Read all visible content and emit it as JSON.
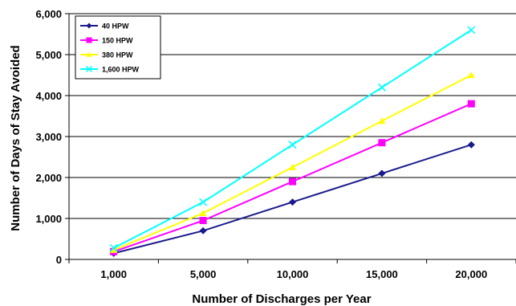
{
  "chart_data": {
    "type": "line",
    "title": "",
    "xlabel": "Number of Discharges per Year",
    "ylabel": "Number of Days of Stay Avoided",
    "categories": [
      "1,000",
      "5,000",
      "10,000",
      "15,000",
      "20,000"
    ],
    "x": [
      1000,
      5000,
      10000,
      15000,
      20000
    ],
    "ylim": [
      0,
      6000
    ],
    "yticks": [
      "0",
      "1,000",
      "2,000",
      "3,000",
      "4,000",
      "5,000",
      "6,000"
    ],
    "grid": "horizontal",
    "legend_position": "top-left",
    "series": [
      {
        "name": "40 HPW",
        "values": [
          150,
          700,
          1400,
          2100,
          2800
        ],
        "color": "#1a1a8c",
        "marker": "diamond"
      },
      {
        "name": "150 HPW",
        "values": [
          190,
          950,
          1900,
          2850,
          3800
        ],
        "color": "#ff00ff",
        "marker": "square"
      },
      {
        "name": "380 HPW",
        "values": [
          230,
          1130,
          2250,
          3380,
          4500
        ],
        "color": "#ffff00",
        "marker": "triangle"
      },
      {
        "name": "1,600 HPW",
        "values": [
          280,
          1400,
          2800,
          4200,
          5600
        ],
        "color": "#00ffff",
        "marker": "x"
      }
    ]
  }
}
